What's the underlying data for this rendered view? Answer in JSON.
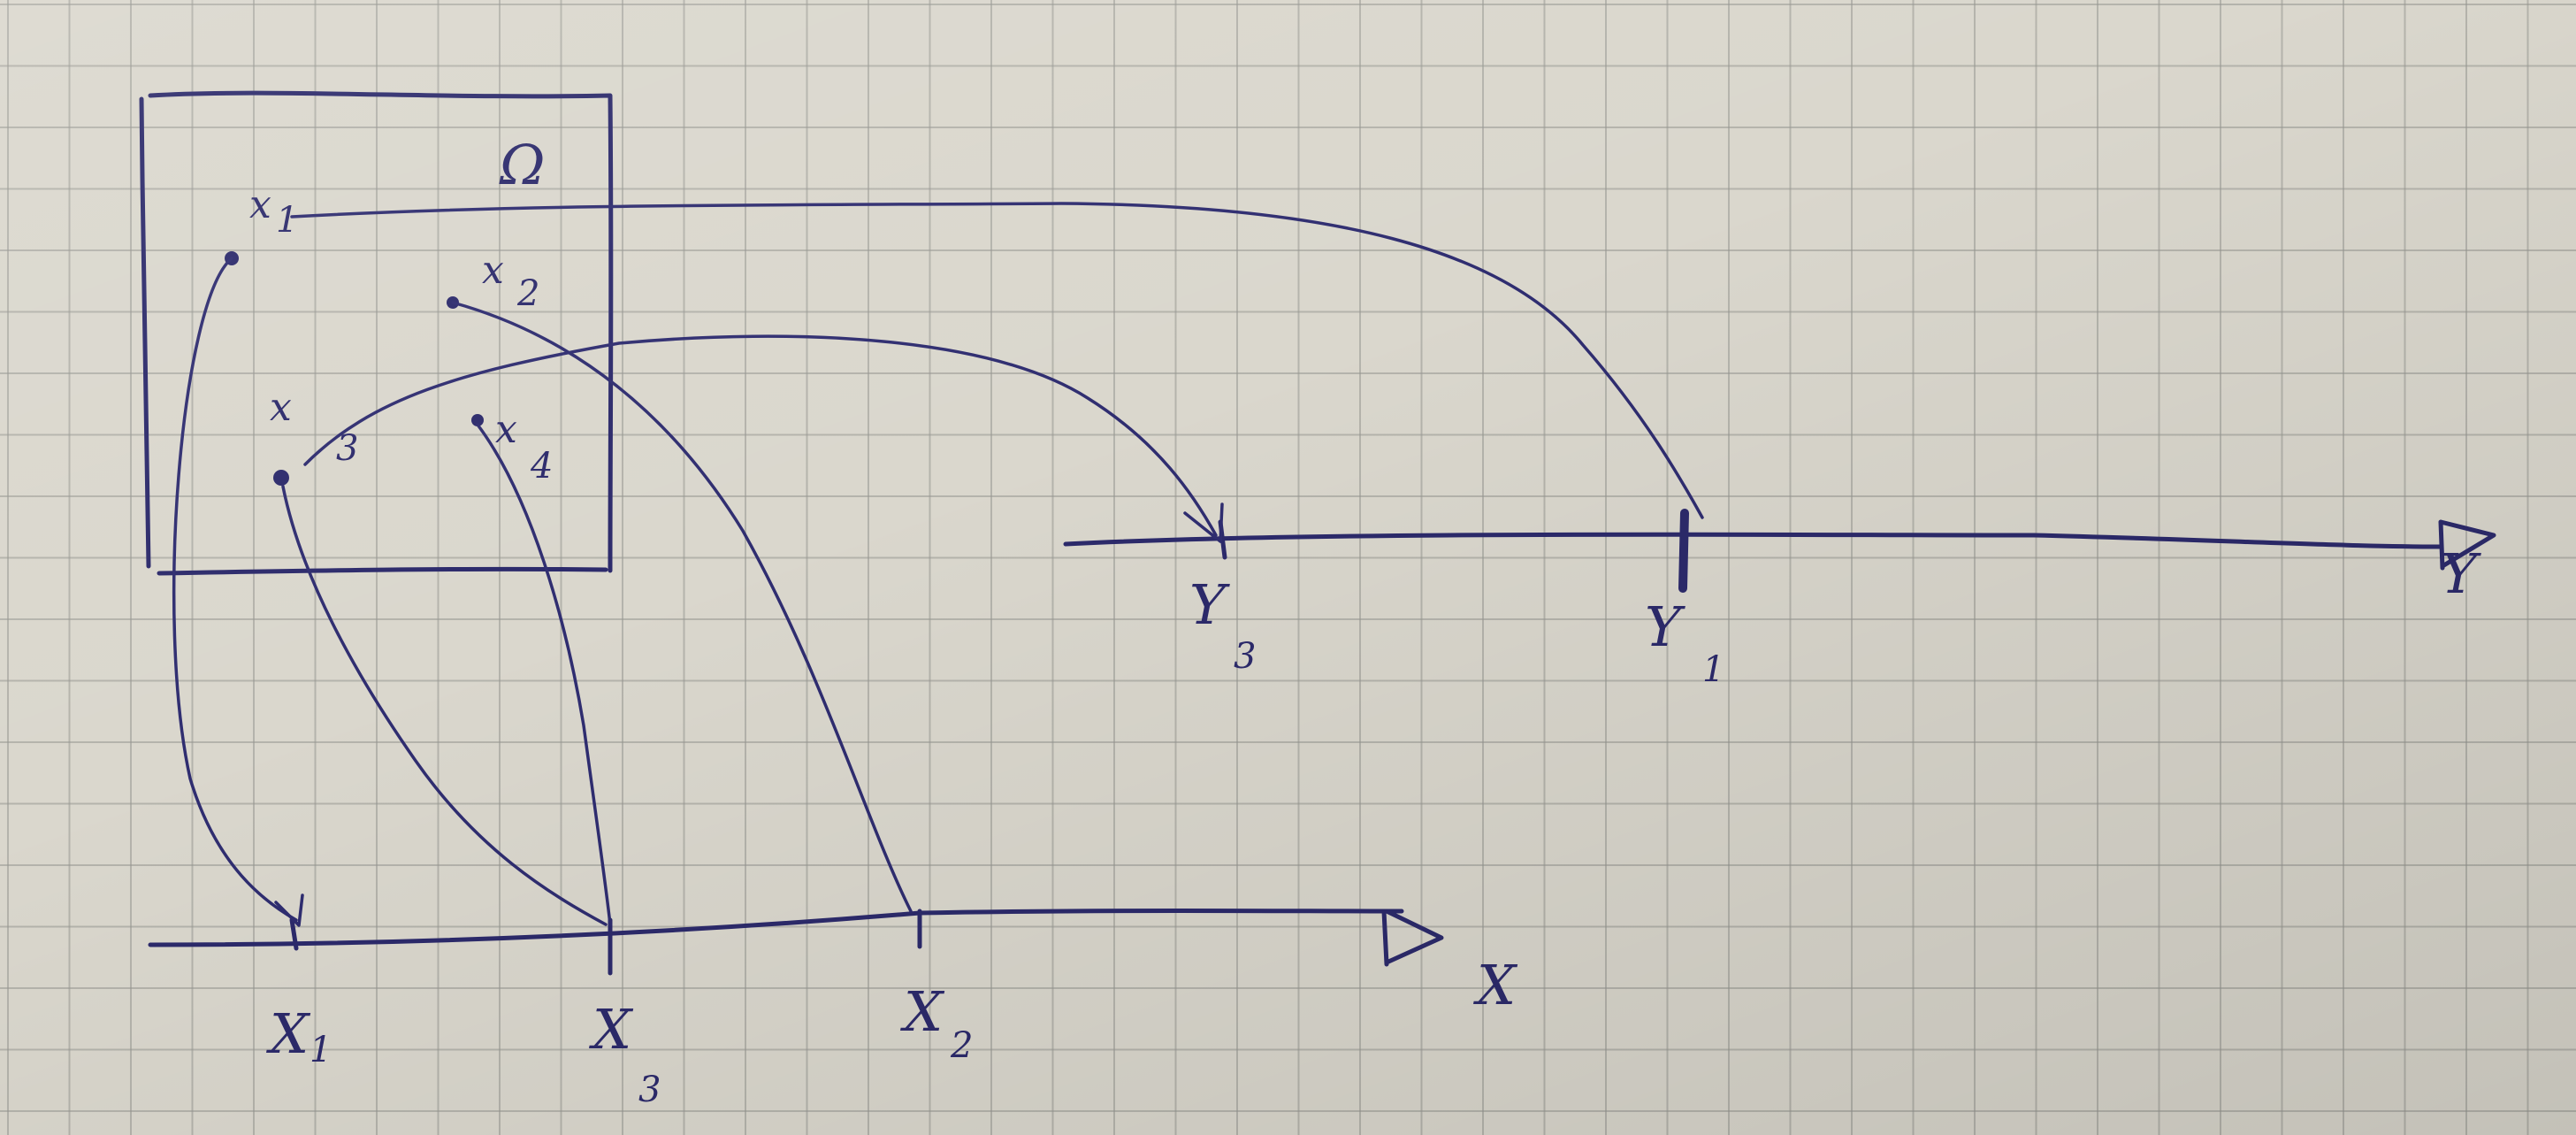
{
  "diagram": {
    "domain_label": "Ω",
    "points": [
      {
        "name": "x",
        "sub": "1"
      },
      {
        "name": "x",
        "sub": "2"
      },
      {
        "name": "x",
        "sub": "3"
      },
      {
        "name": "x",
        "sub": "4"
      }
    ],
    "x_axis": {
      "label": "X",
      "ticks": [
        {
          "name": "X",
          "sub": "1"
        },
        {
          "name": "X",
          "sub": "3"
        },
        {
          "name": "X",
          "sub": "2"
        }
      ]
    },
    "y_axis": {
      "label": "Y",
      "ticks": [
        {
          "name": "Y",
          "sub": "3"
        },
        {
          "name": "Y",
          "sub": "1"
        }
      ]
    },
    "ink_color": "#2c2a6b"
  }
}
